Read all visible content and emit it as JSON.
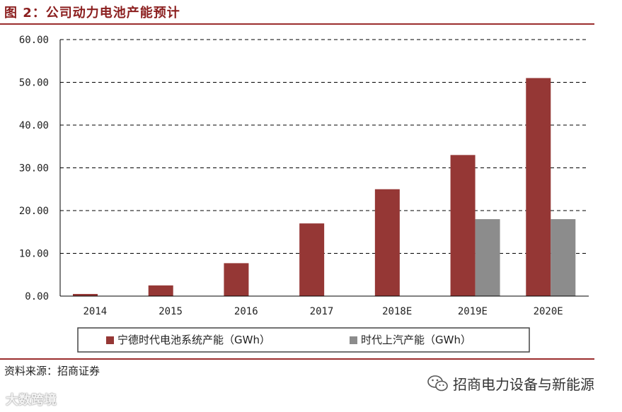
{
  "figure_title": "图 2：公司动力电池产能预计",
  "source_note": "资料来源：招商证券",
  "watermark_left": "大数跨境",
  "watermark_right": "招商电力设备与新能源",
  "colors": {
    "series1": "#953735",
    "series2": "#8c8c8c",
    "accent": "#9b2d2d"
  },
  "chart_data": {
    "type": "bar",
    "title": "",
    "xlabel": "",
    "ylabel": "",
    "categories": [
      "2014",
      "2015",
      "2016",
      "2017",
      "2018E",
      "2019E",
      "2020E"
    ],
    "series": [
      {
        "name": "宁德时代电池系统产能（GWh）",
        "values": [
          0.5,
          2.5,
          7.7,
          17.0,
          25.0,
          33.0,
          51.0
        ]
      },
      {
        "name": "时代上汽产能（GWh）",
        "values": [
          null,
          null,
          null,
          null,
          null,
          18.0,
          18.0
        ]
      }
    ],
    "ylim": [
      0,
      60
    ],
    "yticks": [
      "0.00",
      "10.00",
      "20.00",
      "30.00",
      "40.00",
      "50.00",
      "60.00"
    ],
    "grid": "dashed-horizontal",
    "legend_position": "bottom"
  }
}
